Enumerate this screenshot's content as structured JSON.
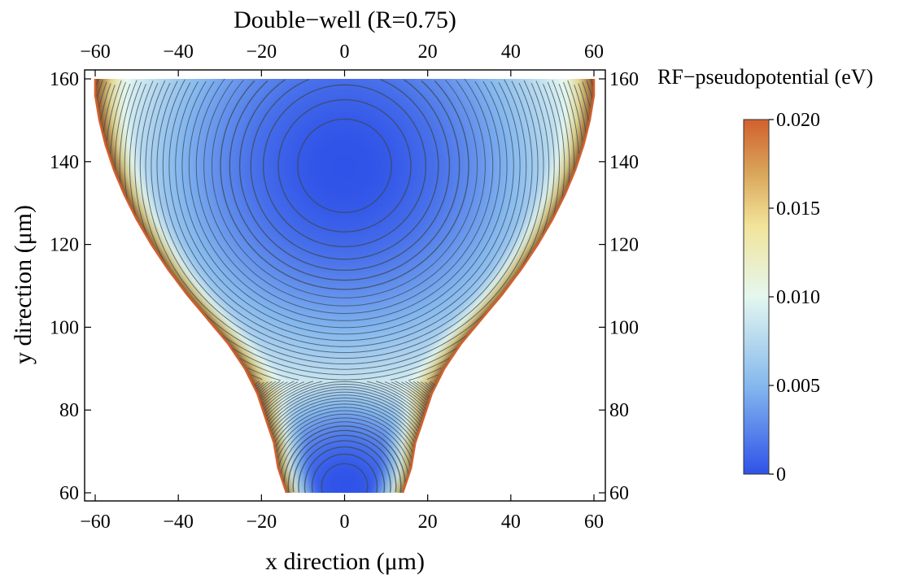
{
  "chart_data": {
    "type": "contour",
    "title": "Double−well (R=0.75)",
    "xlabel": "x direction (μm)",
    "ylabel": "y direction (μm)",
    "xlim": [
      -60,
      60
    ],
    "ylim": [
      60,
      160
    ],
    "xticks": [
      -60,
      -40,
      -20,
      0,
      20,
      40,
      60
    ],
    "yticks": [
      60,
      80,
      100,
      120,
      140,
      160
    ],
    "xtick_labels": [
      "−60",
      "−40",
      "−20",
      "0",
      "20",
      "40",
      "60"
    ],
    "ytick_labels": [
      "60",
      "80",
      "100",
      "120",
      "140",
      "160"
    ],
    "colorbar": {
      "title": "RF−pseudopotential (eV)",
      "range": [
        0,
        0.02
      ],
      "ticks": [
        0,
        0.005,
        0.01,
        0.015,
        0.02
      ],
      "tick_labels": [
        "0",
        "0.005",
        "0.010",
        "0.015",
        "0.020"
      ],
      "colors": [
        "#2f52e8",
        "#85b8ee",
        "#e4f7ef",
        "#f2e49a",
        "#d9a55a",
        "#d2602f"
      ]
    },
    "minima": [
      {
        "x": 0,
        "y": 139,
        "value": 0
      },
      {
        "x": 0,
        "y": 61.5,
        "value": 0
      }
    ],
    "saddle": {
      "x": 0,
      "y": 87,
      "value": 0.0085
    },
    "boundary_halfwidth": [
      {
        "y": 60,
        "x": 14
      },
      {
        "y": 66,
        "x": 16
      },
      {
        "y": 72,
        "x": 17
      },
      {
        "y": 78,
        "x": 19
      },
      {
        "y": 84,
        "x": 21
      },
      {
        "y": 90,
        "x": 24
      },
      {
        "y": 96,
        "x": 28
      },
      {
        "y": 102,
        "x": 33
      },
      {
        "y": 108,
        "x": 38
      },
      {
        "y": 114,
        "x": 42.5
      },
      {
        "y": 120,
        "x": 46.5
      },
      {
        "y": 126,
        "x": 50
      },
      {
        "y": 132,
        "x": 53
      },
      {
        "y": 138,
        "x": 55.5
      },
      {
        "y": 144,
        "x": 57.5
      },
      {
        "y": 150,
        "x": 59
      },
      {
        "y": 156,
        "x": 60
      },
      {
        "y": 160,
        "x": 60
      }
    ]
  }
}
